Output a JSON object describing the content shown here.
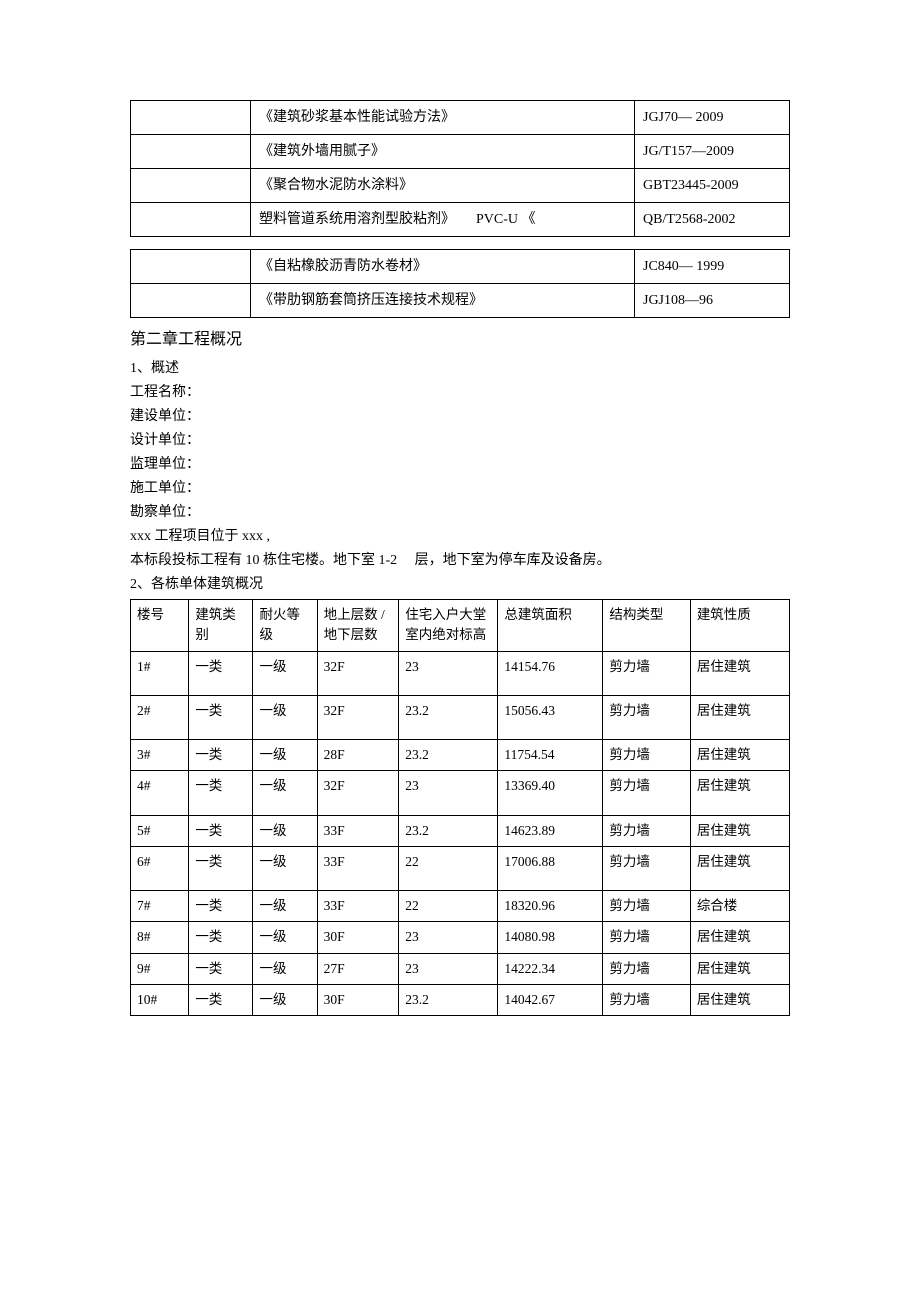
{
  "standards1": {
    "rows": [
      {
        "name": "《建筑砂浆基本性能试验方法》",
        "code": "JGJ70— 2009"
      },
      {
        "name": "《建筑外墙用腻子》",
        "code": "JG/T157—2009"
      },
      {
        "name": "《聚合物水泥防水涂料》",
        "code": "GBT23445-2009"
      },
      {
        "name": "塑料管道系统用溶剂型胶粘剂》　　PVC-U 《",
        "code": "QB/T2568-2002"
      }
    ]
  },
  "standards2": {
    "rows": [
      {
        "name": "《自粘橡胶沥青防水卷材》",
        "code": "JC840— 1999"
      },
      {
        "name": "《带肋钢筋套筒挤压连接技术规程》",
        "code": "JGJ108—96"
      }
    ]
  },
  "chapter": {
    "title": "第二章工程概况",
    "section1_title": "1、概述",
    "lines": [
      "工程名称：",
      "建设单位：",
      "设计单位：",
      "监理单位：",
      "施工单位：",
      "勘察单位：",
      "xxx 工程项目位于  xxx ,",
      "本标段投标工程有  10 栋住宅楼。地下室  1-2　 层，地下室为停车库及设备房。"
    ],
    "section2_title": "2、各栋单体建筑概况"
  },
  "buildings": {
    "headers": [
      "楼号",
      "建筑类别",
      "耐火等级",
      "地上层数 /地下层数",
      "住宅入户大堂室内绝对标高",
      "总建筑面积",
      "结构类型",
      "建筑性质"
    ],
    "rows": [
      {
        "no": "1#",
        "cat": "一类",
        "fire": "一级",
        "floors": "32F",
        "elev": "23",
        "area": "14154.76",
        "struct": "剪力墙",
        "type": "居住建筑",
        "tall": true
      },
      {
        "no": "2#",
        "cat": "一类",
        "fire": "一级",
        "floors": "32F",
        "elev": "23.2",
        "area": "15056.43",
        "struct": "剪力墙",
        "type": "居住建筑",
        "tall": true
      },
      {
        "no": "3#",
        "cat": "一类",
        "fire": "一级",
        "floors": "28F",
        "elev": "23.2",
        "area": "11754.54",
        "struct": "剪力墙",
        "type": "居住建筑",
        "tall": false
      },
      {
        "no": "4#",
        "cat": "一类",
        "fire": "一级",
        "floors": "32F",
        "elev": "23",
        "area": "13369.40",
        "struct": "剪力墙",
        "type": "居住建筑",
        "tall": true
      },
      {
        "no": "5#",
        "cat": "一类",
        "fire": "一级",
        "floors": "33F",
        "elev": "23.2",
        "area": "14623.89",
        "struct": "剪力墙",
        "type": "居住建筑",
        "tall": false
      },
      {
        "no": "6#",
        "cat": "一类",
        "fire": "一级",
        "floors": "33F",
        "elev": "22",
        "area": "17006.88",
        "struct": "剪力墙",
        "type": "居住建筑",
        "tall": true
      },
      {
        "no": "7#",
        "cat": "一类",
        "fire": "一级",
        "floors": "33F",
        "elev": "22",
        "area": "18320.96",
        "struct": "剪力墙",
        "type": "综合楼",
        "tall": false
      },
      {
        "no": "8#",
        "cat": "一类",
        "fire": "一级",
        "floors": "30F",
        "elev": "23",
        "area": "14080.98",
        "struct": "剪力墙",
        "type": "居住建筑",
        "tall": false
      },
      {
        "no": "9#",
        "cat": "一类",
        "fire": "一级",
        "floors": "27F",
        "elev": "23",
        "area": "14222.34",
        "struct": "剪力墙",
        "type": "居住建筑",
        "tall": false
      },
      {
        "no": "10#",
        "cat": "一类",
        "fire": "一级",
        "floors": "30F",
        "elev": "23.2",
        "area": "14042.67",
        "struct": "剪力墙",
        "type": "居住建筑",
        "tall": false
      }
    ]
  }
}
